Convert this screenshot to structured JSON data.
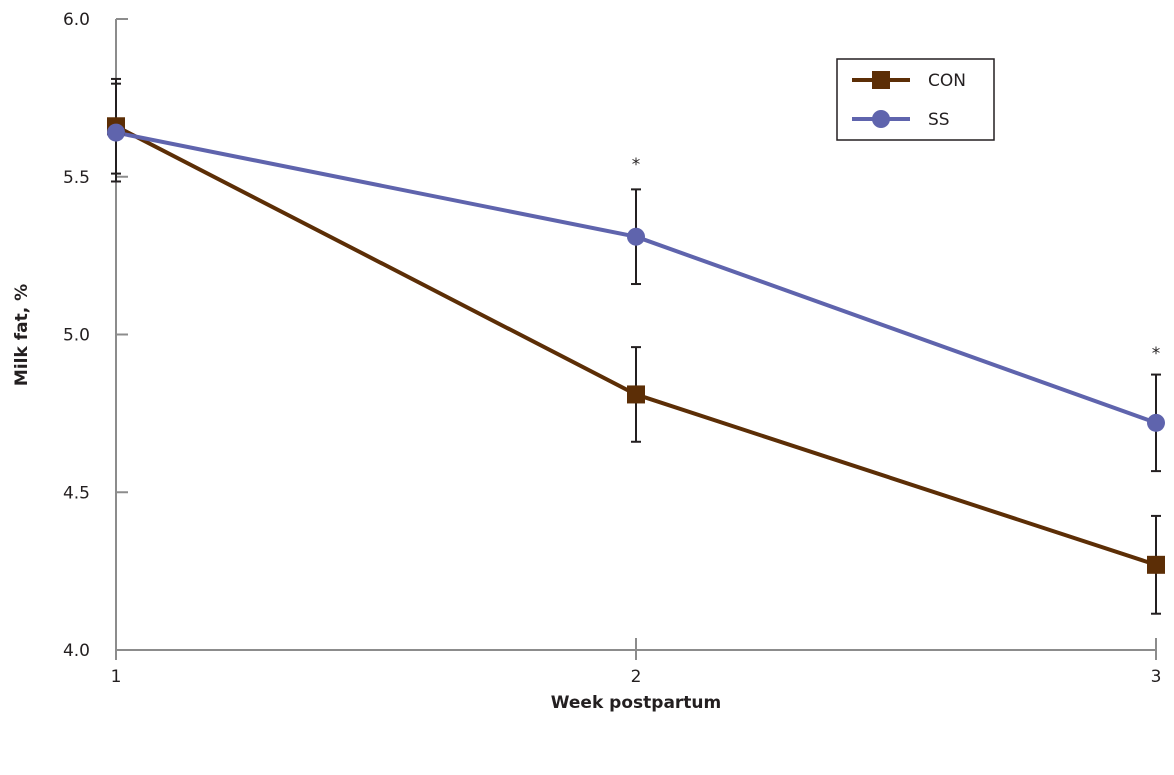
{
  "chart_data": {
    "type": "line",
    "xlabel": "Week postpartum",
    "ylabel": "Milk fat, %",
    "x": [
      1,
      2,
      3
    ],
    "x_tick_labels": [
      "1",
      "2",
      "3"
    ],
    "ylim": [
      4.0,
      6.0
    ],
    "y_ticks": [
      4.0,
      4.5,
      5.0,
      5.5,
      6.0
    ],
    "y_tick_labels": [
      "4.0",
      "4.5",
      "5.0",
      "5.5",
      "6.0"
    ],
    "grid": false,
    "legend_position": "top-right",
    "series": [
      {
        "name": "CON",
        "values": [
          5.66,
          4.81,
          4.27
        ],
        "error": [
          0.15,
          0.15,
          0.155
        ],
        "color": "#5c2e06",
        "marker": "square"
      },
      {
        "name": "SS",
        "values": [
          5.64,
          5.31,
          4.72
        ],
        "error": [
          0.155,
          0.15,
          0.153
        ],
        "color": "#5f64ad",
        "marker": "circle"
      }
    ],
    "annotations": [
      {
        "text": "*",
        "x": 2,
        "y": 5.56
      },
      {
        "text": "*",
        "x": 3,
        "y": 4.96
      }
    ]
  }
}
